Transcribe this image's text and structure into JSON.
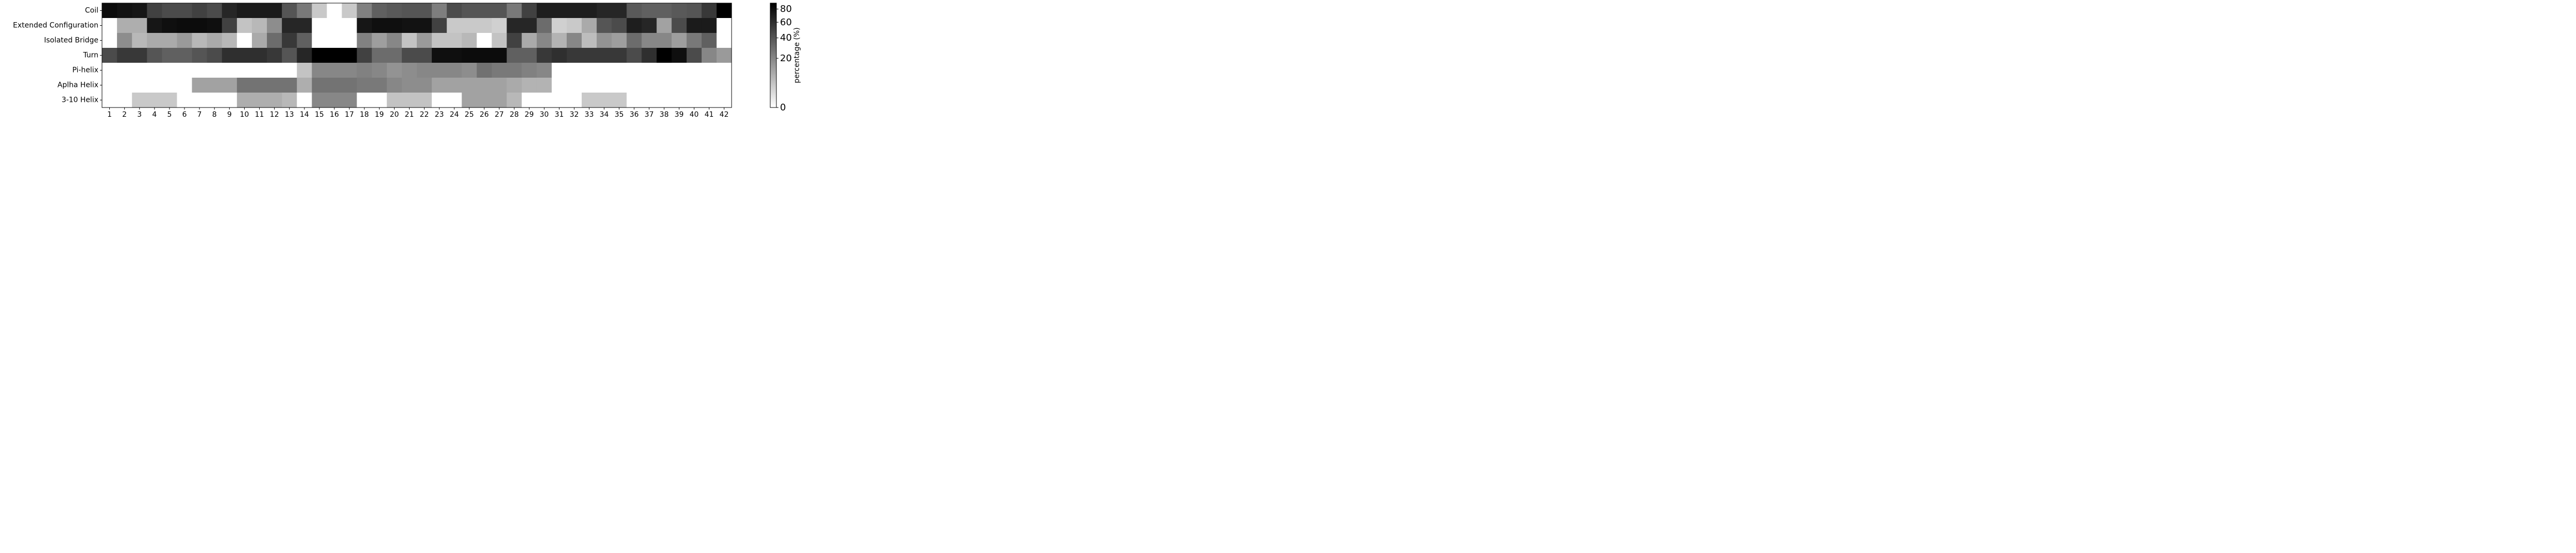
{
  "chart_data": {
    "type": "heatmap",
    "title": "",
    "xlabel": "",
    "ylabel": "",
    "x": [
      1,
      2,
      3,
      4,
      5,
      6,
      7,
      8,
      9,
      10,
      11,
      12,
      13,
      14,
      15,
      16,
      17,
      18,
      19,
      20,
      21,
      22,
      23,
      24,
      25,
      26,
      27,
      28,
      29,
      30,
      31,
      32,
      33,
      34,
      35,
      36,
      37,
      38,
      39,
      40,
      41,
      42
    ],
    "rows": [
      "Coil",
      "Extended Configuration",
      "Isolated Bridge",
      "Turn",
      "Pi-helix",
      "Aplha Helix",
      "3-10 Helix"
    ],
    "values": [
      [
        82,
        78,
        75,
        50,
        45,
        45,
        50,
        45,
        65,
        72,
        72,
        72,
        40,
        25,
        4,
        0,
        4,
        22,
        35,
        38,
        40,
        40,
        23,
        45,
        40,
        40,
        40,
        25,
        50,
        70,
        70,
        70,
        70,
        65,
        65,
        38,
        35,
        35,
        38,
        40,
        55,
        90
      ],
      [
        0,
        9,
        9,
        75,
        80,
        82,
        82,
        80,
        50,
        5,
        7,
        18,
        65,
        65,
        0,
        0,
        0,
        75,
        80,
        80,
        78,
        78,
        50,
        4,
        4,
        4,
        3,
        65,
        65,
        30,
        3,
        4,
        10,
        40,
        45,
        70,
        65,
        12,
        45,
        72,
        72,
        0
      ],
      [
        0,
        18,
        7,
        10,
        10,
        14,
        7,
        10,
        7,
        0,
        10,
        30,
        55,
        35,
        0,
        0,
        0,
        22,
        13,
        20,
        5,
        14,
        5,
        5,
        7,
        0,
        5,
        50,
        10,
        20,
        8,
        20,
        6,
        16,
        13,
        30,
        20,
        20,
        13,
        25,
        35,
        0
      ],
      [
        45,
        55,
        55,
        40,
        35,
        35,
        40,
        45,
        60,
        60,
        60,
        55,
        40,
        65,
        90,
        92,
        92,
        50,
        30,
        30,
        45,
        45,
        80,
        80,
        82,
        82,
        82,
        35,
        35,
        55,
        60,
        55,
        55,
        55,
        55,
        45,
        60,
        90,
        80,
        45,
        20,
        14
      ],
      [
        0,
        0,
        0,
        0,
        0,
        0,
        0,
        0,
        0,
        0,
        0,
        0,
        0,
        5,
        20,
        20,
        20,
        22,
        20,
        16,
        18,
        20,
        20,
        20,
        18,
        28,
        25,
        25,
        22,
        20,
        0,
        0,
        0,
        0,
        0,
        0,
        0,
        0,
        0,
        0,
        0,
        0
      ],
      [
        0,
        0,
        0,
        0,
        0,
        0,
        12,
        12,
        12,
        27,
        27,
        27,
        27,
        9,
        27,
        27,
        27,
        25,
        25,
        20,
        18,
        18,
        12,
        12,
        12,
        12,
        12,
        10,
        8,
        8,
        0,
        0,
        0,
        0,
        0,
        0,
        0,
        0,
        0,
        0,
        0,
        0
      ],
      [
        0,
        0,
        4,
        4,
        4,
        0,
        0,
        0,
        0,
        9,
        9,
        9,
        7,
        0,
        20,
        20,
        20,
        0,
        0,
        5,
        5,
        5,
        0,
        0,
        12,
        12,
        12,
        7,
        0,
        0,
        0,
        0,
        4,
        4,
        4,
        0,
        0,
        0,
        0,
        0,
        0,
        0
      ]
    ],
    "colormap": "greys",
    "colorbar": {
      "label": "percentage (%)",
      "ticks": [
        0,
        20,
        40,
        60,
        80
      ],
      "vmin": 0,
      "vmax": 90,
      "scale": "quadratic"
    },
    "grid": false,
    "legend": "none"
  }
}
